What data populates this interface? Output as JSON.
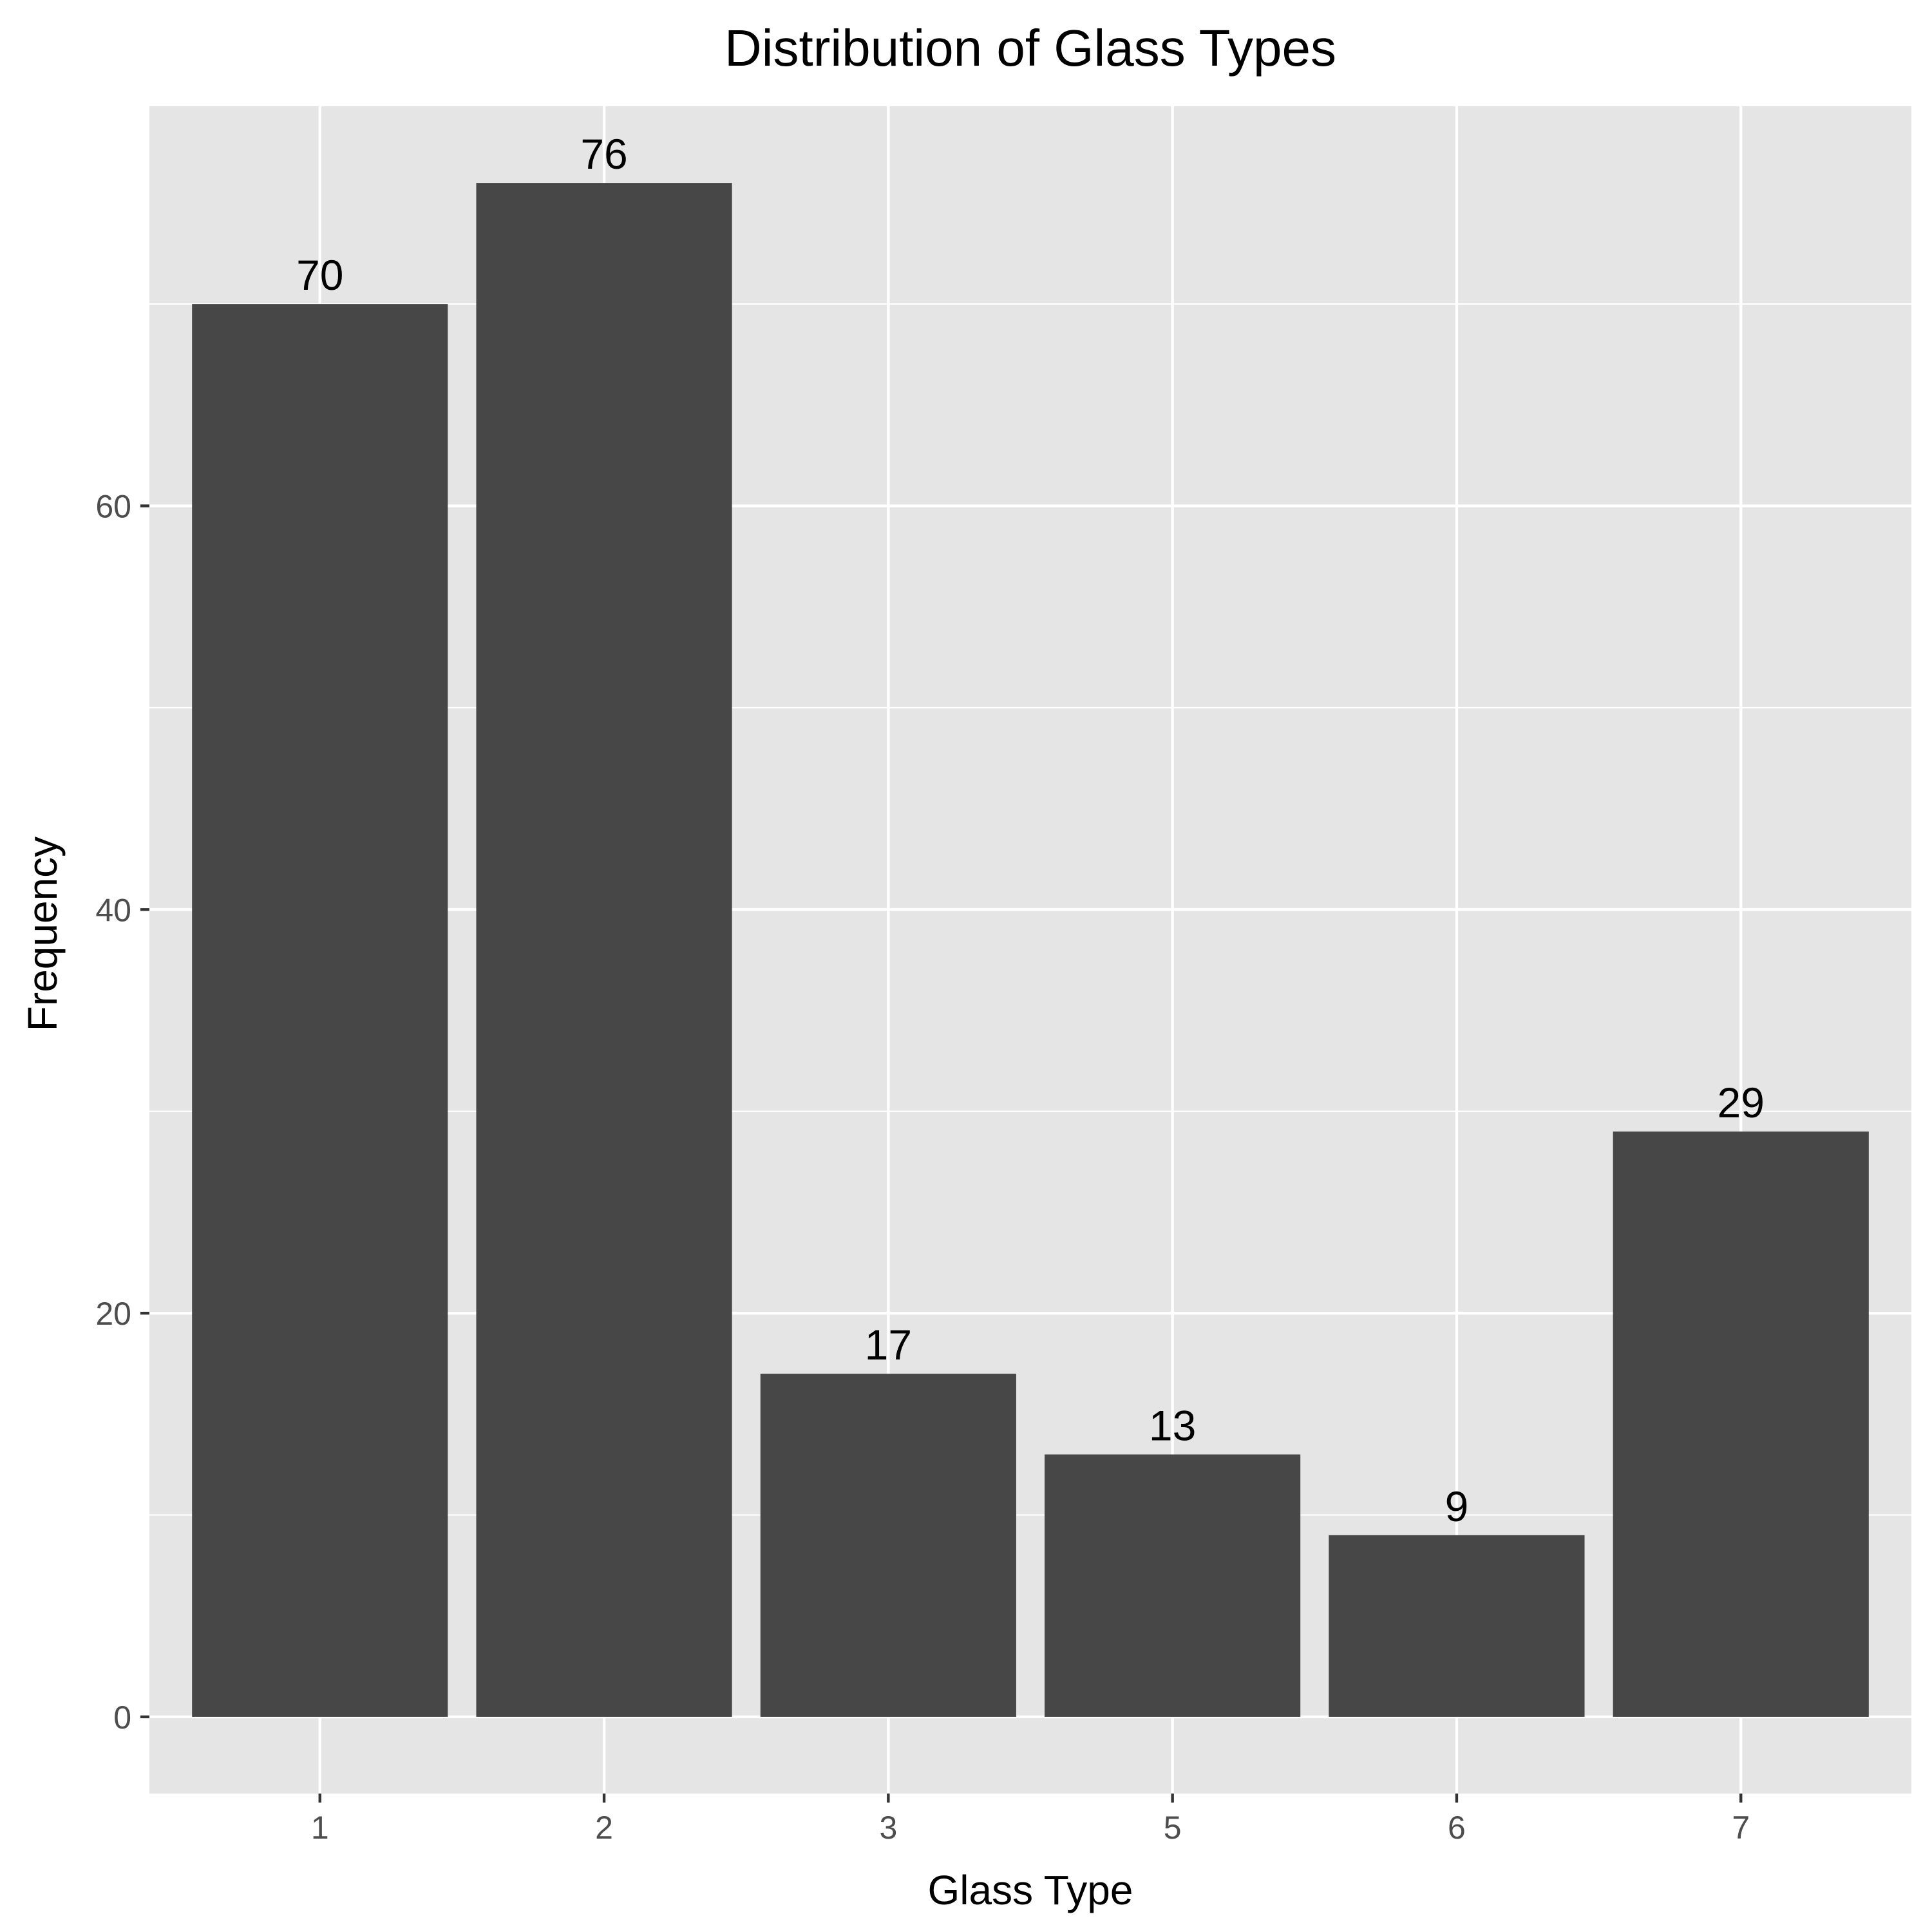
{
  "chart_data": {
    "type": "bar",
    "title": "Distribution of Glass Types",
    "xlabel": "Glass Type",
    "ylabel": "Frequency",
    "categories": [
      "1",
      "2",
      "3",
      "5",
      "6",
      "7"
    ],
    "values": [
      70,
      76,
      17,
      13,
      9,
      29
    ],
    "data_labels": [
      "70",
      "76",
      "17",
      "13",
      "9",
      "29"
    ],
    "y_ticks": [
      0,
      20,
      40,
      60
    ],
    "y_tick_labels": [
      "0",
      "20",
      "40",
      "60"
    ],
    "ylim": [
      -3.8,
      79.8
    ],
    "grid": true,
    "legend": "none",
    "colors": {
      "bar": "#474747",
      "panel_background": "#e5e5e5",
      "gridline": "#ffffff",
      "tick_mark": "#333333",
      "tick_text": "#4d4d4d",
      "text": "#000000"
    }
  }
}
